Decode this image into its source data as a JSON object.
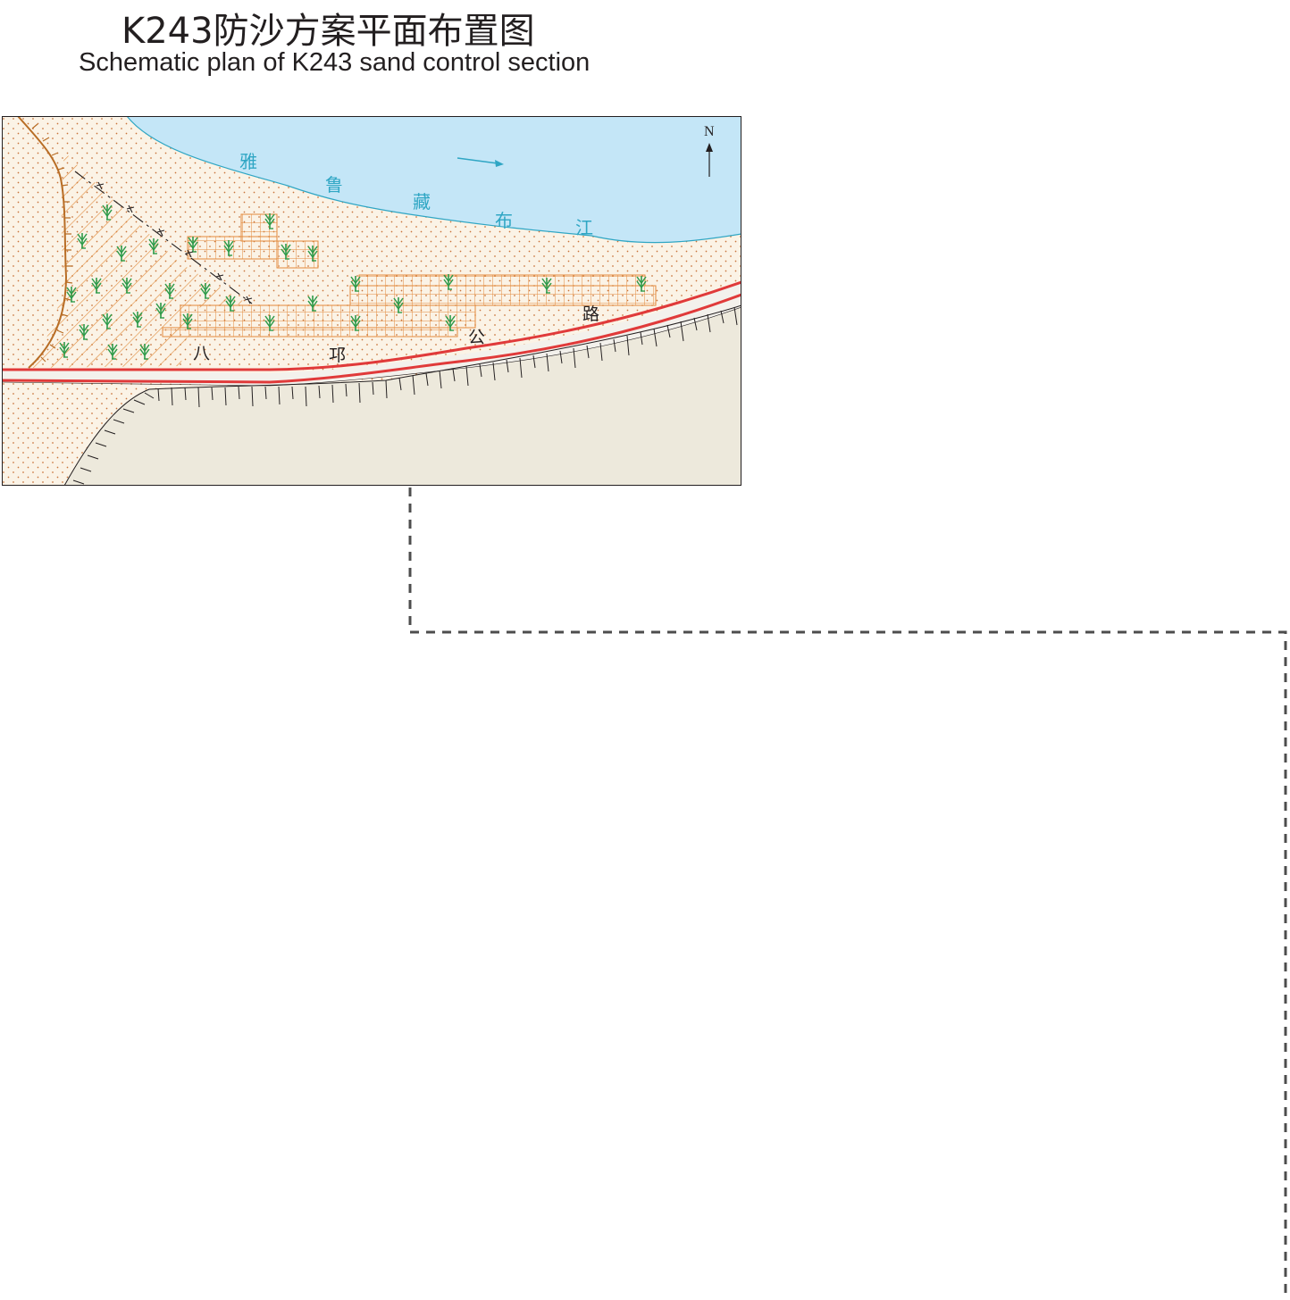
{
  "title": {
    "cn": "K243防沙方案平面布置图",
    "en": "Schematic plan of K243 sand control section"
  },
  "map": {
    "north_label": "N",
    "river_chars": [
      "雅",
      "鲁",
      "藏",
      "布",
      "江"
    ],
    "road_chars": [
      "八",
      "邛",
      "公",
      "路"
    ],
    "colors": {
      "river_fill": "#c4e6f7",
      "river_outline": "#2fa6c4",
      "sand_fill": "#fbf3e6",
      "sand_dots": "#c9743a",
      "slope_fill": "#ede9dc",
      "road_red": "#e03a3a",
      "grid_orange": "#e38a3c",
      "hatch_orange": "#e08a3a",
      "tree_green": "#2e9b4a",
      "hill_brown": "#b86d25",
      "fence_black": "#231f20"
    },
    "icons": [
      "north-arrow-icon",
      "flow-arrow-icon",
      "tree-icon",
      "fence-line-icon",
      "slope-hachure-icon"
    ]
  }
}
